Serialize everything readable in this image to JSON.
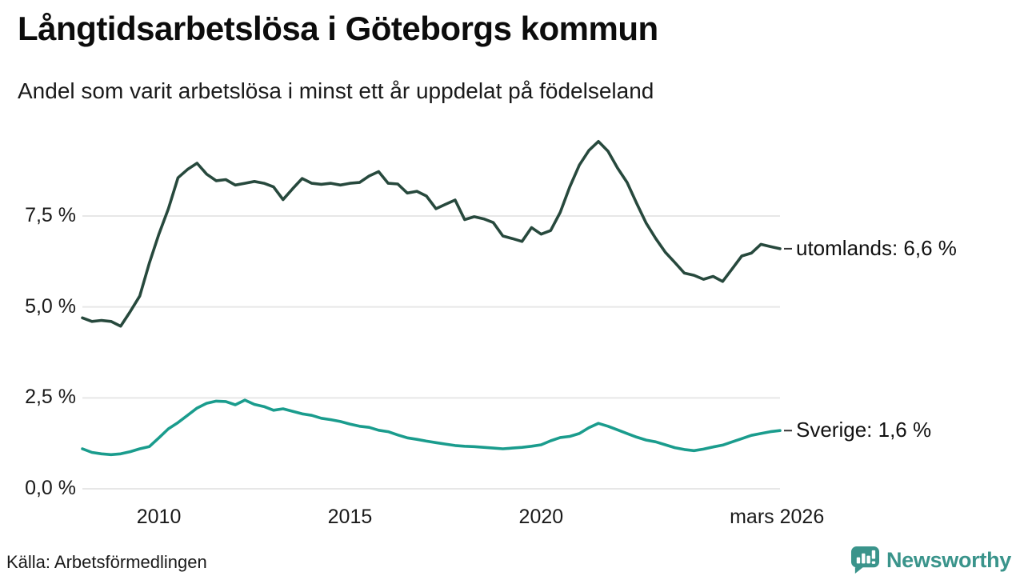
{
  "header": {
    "title": "Långtidsarbetslösa i Göteborgs kommun",
    "subtitle": "Andel som varit arbetslösa i minst ett år uppdelat på födelseland"
  },
  "footer": {
    "source": "Källa: Arbetsförmedlingen",
    "brand": "Newsworthy"
  },
  "colors": {
    "utomlands_line": "#27493d",
    "sverige_line": "#1a9c8d",
    "grid": "#e7e7e7",
    "label_dash": "#333333",
    "text": "#1a1a1a",
    "brand_teal": "#3a948b"
  },
  "chart_data": {
    "type": "line",
    "title": "Långtidsarbetslösa i Göteborgs kommun",
    "subtitle": "Andel som varit arbetslösa i minst ett år uppdelat på födelseland",
    "xlabel": "",
    "ylabel": "",
    "x_unit": "decimal year (monthly share series, 2008 - mars 2026)",
    "ylim": [
      0,
      10
    ],
    "grid": "horizontal",
    "legend": "line-end-labels",
    "y_ticks": [
      {
        "value": 0.0,
        "label": "0,0 %"
      },
      {
        "value": 2.5,
        "label": "2,5 %"
      },
      {
        "value": 5.0,
        "label": "5,0 %"
      },
      {
        "value": 7.5,
        "label": "7,5 %"
      }
    ],
    "x_ticks": [
      {
        "value": 2010,
        "label": "2010"
      },
      {
        "value": 2015,
        "label": "2015"
      },
      {
        "value": 2020,
        "label": "2020"
      },
      {
        "value": 2026.17,
        "label": "mars 2026"
      }
    ],
    "x": [
      2008.0,
      2008.25,
      2008.5,
      2008.75,
      2009.0,
      2009.25,
      2009.5,
      2009.75,
      2010.0,
      2010.25,
      2010.5,
      2010.75,
      2011.0,
      2011.25,
      2011.5,
      2011.75,
      2012.0,
      2012.25,
      2012.5,
      2012.75,
      2013.0,
      2013.25,
      2013.5,
      2013.75,
      2014.0,
      2014.25,
      2014.5,
      2014.75,
      2015.0,
      2015.25,
      2015.5,
      2015.75,
      2016.0,
      2016.25,
      2016.5,
      2016.75,
      2017.0,
      2017.25,
      2017.5,
      2017.75,
      2018.0,
      2018.25,
      2018.5,
      2018.75,
      2019.0,
      2019.25,
      2019.5,
      2019.75,
      2020.0,
      2020.25,
      2020.5,
      2020.75,
      2021.0,
      2021.25,
      2021.5,
      2021.75,
      2022.0,
      2022.25,
      2022.5,
      2022.75,
      2023.0,
      2023.25,
      2023.5,
      2023.75,
      2024.0,
      2024.25,
      2024.5,
      2024.75,
      2025.0,
      2025.25,
      2025.5,
      2025.75,
      2026.0,
      2026.25
    ],
    "series": [
      {
        "name": "utomlands",
        "label": "utomlands: 6,6 %",
        "final_value": 6.6,
        "color": "#27493d",
        "values": [
          4.7,
          4.6,
          4.63,
          4.6,
          4.47,
          4.87,
          5.3,
          6.2,
          7.0,
          7.7,
          8.55,
          8.78,
          8.95,
          8.65,
          8.47,
          8.5,
          8.35,
          8.4,
          8.45,
          8.4,
          8.3,
          7.95,
          8.25,
          8.53,
          8.4,
          8.37,
          8.4,
          8.35,
          8.4,
          8.42,
          8.6,
          8.72,
          8.4,
          8.38,
          8.13,
          8.18,
          8.05,
          7.7,
          7.82,
          7.94,
          7.4,
          7.48,
          7.42,
          7.32,
          6.95,
          6.88,
          6.8,
          7.18,
          7.0,
          7.1,
          7.6,
          8.3,
          8.9,
          9.3,
          9.55,
          9.28,
          8.82,
          8.42,
          7.85,
          7.3,
          6.88,
          6.5,
          6.22,
          5.93,
          5.87,
          5.76,
          5.84,
          5.7,
          6.05,
          6.4,
          6.48,
          6.72,
          6.66,
          6.6
        ]
      },
      {
        "name": "Sverige",
        "label": "Sverige: 1,6 %",
        "final_value": 1.6,
        "color": "#1a9c8d",
        "values": [
          1.1,
          1.0,
          0.96,
          0.94,
          0.96,
          1.02,
          1.1,
          1.16,
          1.4,
          1.65,
          1.82,
          2.02,
          2.22,
          2.35,
          2.41,
          2.4,
          2.31,
          2.44,
          2.32,
          2.26,
          2.16,
          2.2,
          2.13,
          2.06,
          2.02,
          1.94,
          1.9,
          1.85,
          1.78,
          1.72,
          1.69,
          1.61,
          1.57,
          1.48,
          1.4,
          1.36,
          1.31,
          1.27,
          1.23,
          1.19,
          1.17,
          1.16,
          1.14,
          1.12,
          1.1,
          1.12,
          1.14,
          1.17,
          1.21,
          1.32,
          1.41,
          1.44,
          1.52,
          1.68,
          1.8,
          1.72,
          1.62,
          1.52,
          1.42,
          1.34,
          1.29,
          1.21,
          1.13,
          1.08,
          1.05,
          1.09,
          1.15,
          1.2,
          1.29,
          1.38,
          1.47,
          1.52,
          1.57,
          1.6
        ]
      }
    ]
  }
}
